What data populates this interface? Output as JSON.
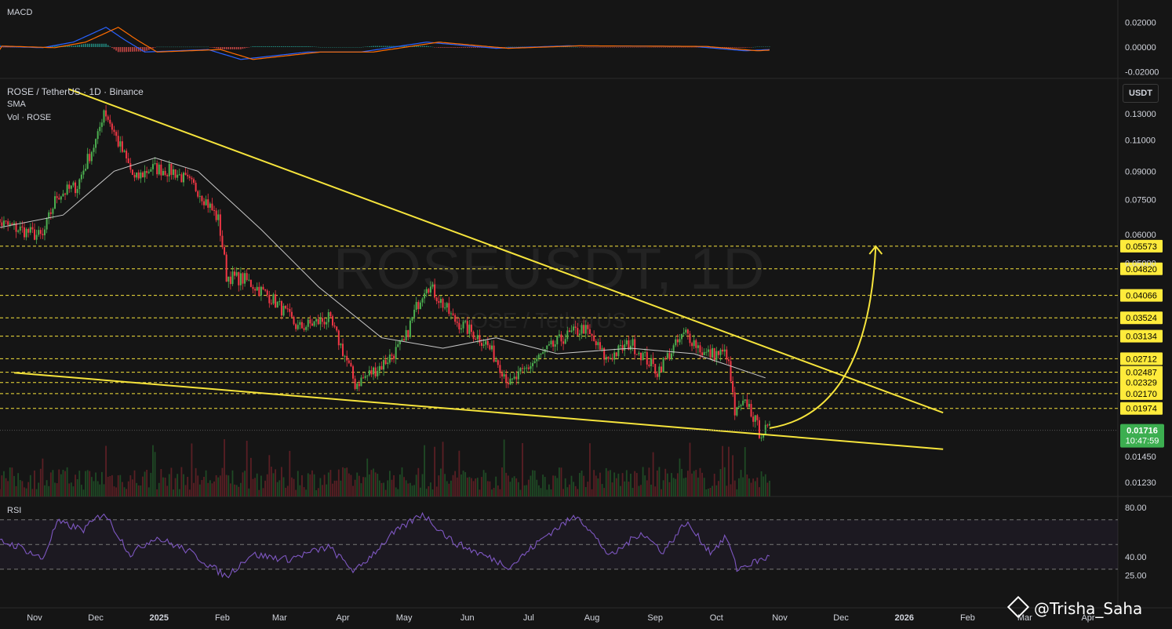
{
  "legend": {
    "symbol": "ROSE / TetherUS · 1D · Binance",
    "sma": "SMA",
    "volume": "Vol · ROSE"
  },
  "panes": {
    "macd": "MACD",
    "rsi": "RSI"
  },
  "currency": "USDT",
  "watermark": {
    "title": "ROSEUSDT, 1D",
    "subtitle": "ROSE / TetherUS"
  },
  "credit": "@Trisha_Saha",
  "colors": {
    "background": "#151515",
    "bull": "#4caf50",
    "bear": "#f23645",
    "trendline": "#f6e43c",
    "sma": "#c8c8c8",
    "rsi": "#7e57c2",
    "macd": "#2962ff",
    "signal": "#ff6d00",
    "last_price": "#3cae50"
  },
  "chart_data": {
    "type": "candlestick",
    "title": "ROSE / TetherUS · 1D · Binance",
    "y_scale": "log",
    "price_ticks": [
      "0.13000",
      "0.11000",
      "0.09000",
      "0.07500",
      "0.06000",
      "0.05000",
      "0.01450",
      "0.01230"
    ],
    "x_ticks": [
      "Nov",
      "Dec",
      "2025",
      "Feb",
      "Mar",
      "Apr",
      "May",
      "Jun",
      "Jul",
      "Aug",
      "Sep",
      "Oct",
      "Nov",
      "Dec",
      "2026",
      "Feb",
      "Mar",
      "Apr"
    ],
    "levels": [
      "0.05573",
      "0.04820",
      "0.04066",
      "0.03524",
      "0.03134",
      "0.02712",
      "0.02487",
      "0.02329",
      "0.02170",
      "0.01974"
    ],
    "last_price": {
      "value": "0.01716",
      "countdown": "10:47:59"
    },
    "series_price": [
      {
        "date": "2024-10-10",
        "close": 0.066
      },
      {
        "date": "2024-10-25",
        "close": 0.062
      },
      {
        "date": "2024-11-05",
        "close": 0.059
      },
      {
        "date": "2024-11-12",
        "close": 0.077
      },
      {
        "date": "2024-11-22",
        "close": 0.082
      },
      {
        "date": "2024-12-02",
        "close": 0.112
      },
      {
        "date": "2024-12-05",
        "close": 0.134
      },
      {
        "date": "2024-12-12",
        "close": 0.108
      },
      {
        "date": "2024-12-20",
        "close": 0.085
      },
      {
        "date": "2024-12-28",
        "close": 0.092
      },
      {
        "date": "2025-01-08",
        "close": 0.09
      },
      {
        "date": "2025-01-20",
        "close": 0.08
      },
      {
        "date": "2025-01-30",
        "close": 0.066
      },
      {
        "date": "2025-02-03",
        "close": 0.046
      },
      {
        "date": "2025-02-12",
        "close": 0.045
      },
      {
        "date": "2025-02-25",
        "close": 0.04
      },
      {
        "date": "2025-03-10",
        "close": 0.033
      },
      {
        "date": "2025-03-25",
        "close": 0.035
      },
      {
        "date": "2025-04-07",
        "close": 0.023
      },
      {
        "date": "2025-04-20",
        "close": 0.026
      },
      {
        "date": "2025-05-01",
        "close": 0.03
      },
      {
        "date": "2025-05-12",
        "close": 0.044
      },
      {
        "date": "2025-05-25",
        "close": 0.035
      },
      {
        "date": "2025-06-10",
        "close": 0.03
      },
      {
        "date": "2025-06-22",
        "close": 0.023
      },
      {
        "date": "2025-07-05",
        "close": 0.027
      },
      {
        "date": "2025-07-18",
        "close": 0.031
      },
      {
        "date": "2025-07-28",
        "close": 0.033
      },
      {
        "date": "2025-08-08",
        "close": 0.027
      },
      {
        "date": "2025-08-20",
        "close": 0.03
      },
      {
        "date": "2025-09-02",
        "close": 0.025
      },
      {
        "date": "2025-09-16",
        "close": 0.032
      },
      {
        "date": "2025-09-25",
        "close": 0.028
      },
      {
        "date": "2025-10-06",
        "close": 0.028
      },
      {
        "date": "2025-10-10",
        "close": 0.019
      },
      {
        "date": "2025-10-16",
        "close": 0.0205
      },
      {
        "date": "2025-10-22",
        "close": 0.017
      },
      {
        "date": "2025-10-27",
        "close": 0.01716
      }
    ],
    "series_sma": [
      {
        "date": "2024-10-10",
        "value": 0.062
      },
      {
        "date": "2024-11-15",
        "value": 0.068
      },
      {
        "date": "2024-12-10",
        "value": 0.09
      },
      {
        "date": "2024-12-30",
        "value": 0.098
      },
      {
        "date": "2025-01-20",
        "value": 0.09
      },
      {
        "date": "2025-02-20",
        "value": 0.062
      },
      {
        "date": "2025-03-20",
        "value": 0.043
      },
      {
        "date": "2025-04-20",
        "value": 0.031
      },
      {
        "date": "2025-05-20",
        "value": 0.029
      },
      {
        "date": "2025-06-15",
        "value": 0.031
      },
      {
        "date": "2025-07-15",
        "value": 0.028
      },
      {
        "date": "2025-08-20",
        "value": 0.029
      },
      {
        "date": "2025-09-20",
        "value": 0.028
      },
      {
        "date": "2025-10-25",
        "value": 0.024
      }
    ],
    "trendlines": [
      {
        "name": "upper",
        "from": {
          "date": "2024-11-18",
          "price": 0.152
        },
        "to": {
          "date": "2026-01-20",
          "price": 0.0192
        }
      },
      {
        "name": "lower",
        "from": {
          "date": "2024-10-22",
          "price": 0.0248
        },
        "to": {
          "date": "2026-01-20",
          "price": 0.0152
        }
      }
    ],
    "projection_arrow": {
      "from": {
        "date": "2025-10-27",
        "price": 0.0174
      },
      "to": {
        "date": "2025-12-18",
        "price": 0.0557
      }
    },
    "macd": {
      "ticks": [
        "0.02000",
        "0.00000",
        "-0.02000"
      ],
      "points": [
        {
          "date": "2024-10-10",
          "value": 0.0008
        },
        {
          "date": "2024-11-05",
          "value": -0.0005
        },
        {
          "date": "2024-11-20",
          "value": 0.004
        },
        {
          "date": "2024-12-06",
          "value": 0.016
        },
        {
          "date": "2024-12-15",
          "value": 0.006
        },
        {
          "date": "2024-12-25",
          "value": -0.004
        },
        {
          "date": "2025-01-25",
          "value": -0.002
        },
        {
          "date": "2025-02-10",
          "value": -0.01
        },
        {
          "date": "2025-03-15",
          "value": -0.004
        },
        {
          "date": "2025-04-10",
          "value": -0.004
        },
        {
          "date": "2025-05-12",
          "value": 0.004
        },
        {
          "date": "2025-06-15",
          "value": -0.001
        },
        {
          "date": "2025-07-20",
          "value": 0.001
        },
        {
          "date": "2025-09-20",
          "value": 0.0005
        },
        {
          "date": "2025-10-15",
          "value": -0.003
        },
        {
          "date": "2025-10-27",
          "value": -0.002
        }
      ]
    },
    "rsi": {
      "ticks": [
        "80.00",
        "40.00",
        "25.00"
      ],
      "bands": [
        70,
        50,
        30
      ],
      "points": [
        {
          "date": "2024-10-10",
          "value": 55
        },
        {
          "date": "2024-10-25",
          "value": 48
        },
        {
          "date": "2024-11-05",
          "value": 38
        },
        {
          "date": "2024-11-12",
          "value": 68
        },
        {
          "date": "2024-11-25",
          "value": 62
        },
        {
          "date": "2024-12-05",
          "value": 76
        },
        {
          "date": "2024-12-18",
          "value": 42
        },
        {
          "date": "2024-12-30",
          "value": 56
        },
        {
          "date": "2025-01-15",
          "value": 45
        },
        {
          "date": "2025-02-03",
          "value": 24
        },
        {
          "date": "2025-02-15",
          "value": 42
        },
        {
          "date": "2025-03-05",
          "value": 38
        },
        {
          "date": "2025-03-25",
          "value": 48
        },
        {
          "date": "2025-04-07",
          "value": 28
        },
        {
          "date": "2025-04-25",
          "value": 58
        },
        {
          "date": "2025-05-10",
          "value": 75
        },
        {
          "date": "2025-05-25",
          "value": 52
        },
        {
          "date": "2025-06-22",
          "value": 32
        },
        {
          "date": "2025-07-10",
          "value": 58
        },
        {
          "date": "2025-07-25",
          "value": 74
        },
        {
          "date": "2025-08-10",
          "value": 40
        },
        {
          "date": "2025-08-25",
          "value": 60
        },
        {
          "date": "2025-09-05",
          "value": 44
        },
        {
          "date": "2025-09-16",
          "value": 68
        },
        {
          "date": "2025-09-28",
          "value": 44
        },
        {
          "date": "2025-10-06",
          "value": 56
        },
        {
          "date": "2025-10-11",
          "value": 30
        },
        {
          "date": "2025-10-20",
          "value": 36
        },
        {
          "date": "2025-10-27",
          "value": 40
        }
      ]
    }
  }
}
